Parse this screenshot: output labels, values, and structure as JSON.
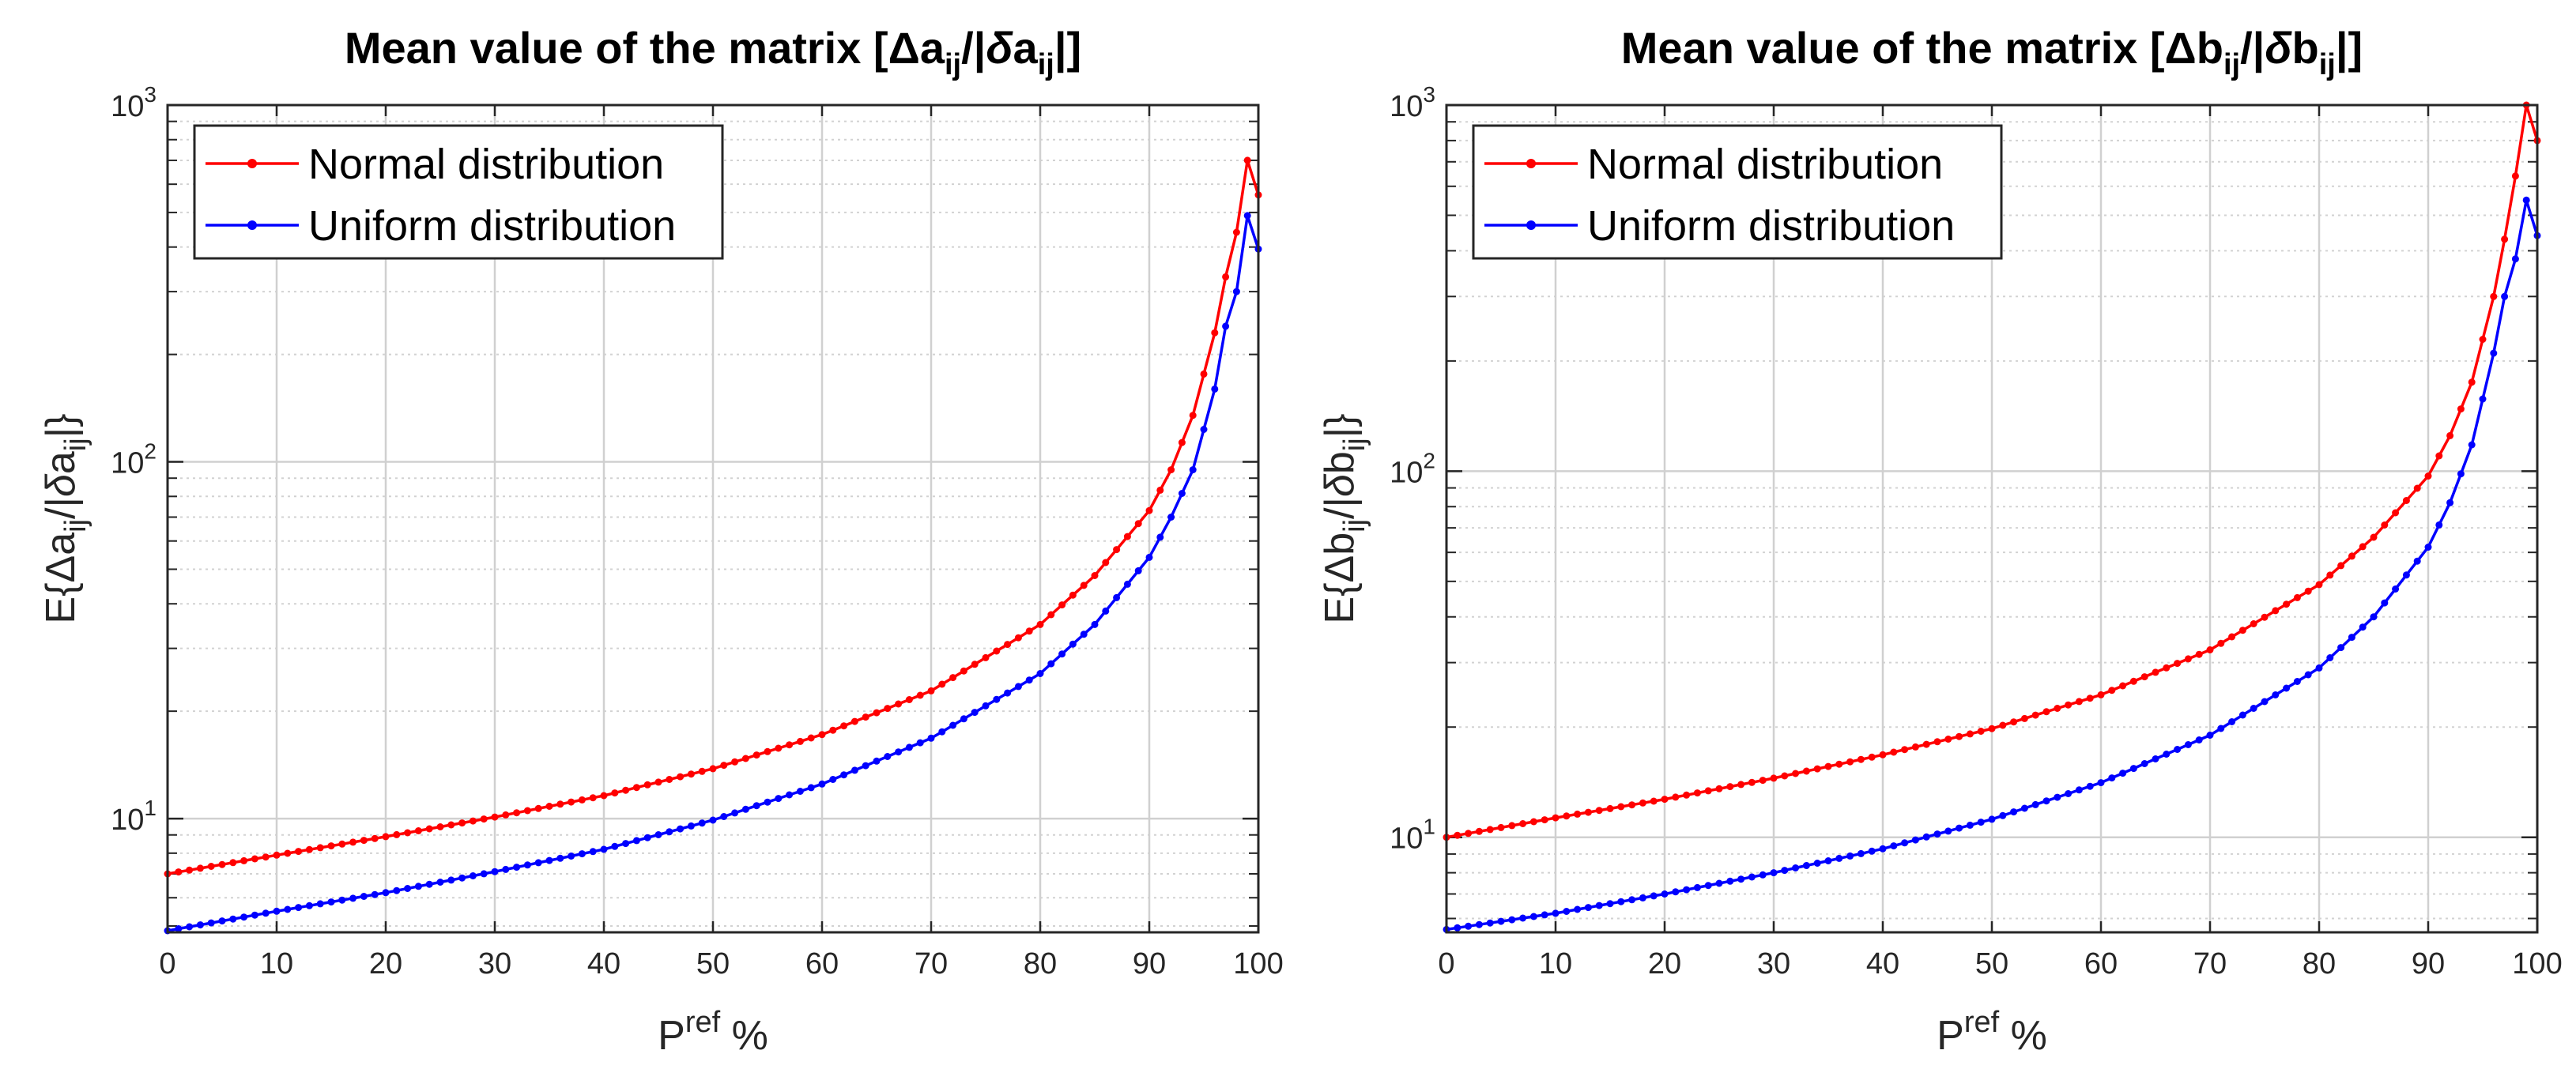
{
  "chart_data": [
    {
      "type": "line",
      "id": "left",
      "title": {
        "prefix": "Mean value of the matrix [",
        "delta": "Δ",
        "var": "a",
        "sub": "ij",
        "mid": "/|",
        "delta2": "δ",
        "var2": "a",
        "sub2": "ij",
        "suffix": "|]"
      },
      "xlabel": {
        "main": "P",
        "sup": "ref",
        "tail": " %"
      },
      "ylabel": {
        "prefix": "E{",
        "delta": "Δ",
        "var": "a",
        "sub": "ij",
        "mid": "/|",
        "delta2": "δ",
        "var2": "a",
        "sub2": "ij",
        "suffix": "|}"
      },
      "xlim": [
        0,
        100
      ],
      "ylim": [
        4.8,
        1000
      ],
      "yscale": "log",
      "xticks": [
        0,
        10,
        20,
        30,
        40,
        50,
        60,
        70,
        80,
        90,
        100
      ],
      "yticks": [
        {
          "value": 10,
          "base": "10",
          "exp": "1"
        },
        {
          "value": 100,
          "base": "10",
          "exp": "2"
        },
        {
          "value": 1000,
          "base": "10",
          "exp": "3"
        }
      ],
      "legend": {
        "location": "top-left",
        "entries": [
          "Normal distribution",
          "Uniform distribution"
        ]
      },
      "series": [
        {
          "name": "Normal distribution",
          "color": "#ff0000",
          "anchors_x": [
            0,
            10,
            20,
            30,
            40,
            50,
            60,
            70,
            80,
            85,
            90,
            92,
            94,
            96,
            97,
            98,
            99,
            100
          ],
          "anchors_y": [
            7.0,
            7.9,
            8.9,
            10.1,
            11.6,
            13.8,
            17.2,
            22.8,
            35,
            48,
            73,
            95,
            135,
            230,
            330,
            440,
            700,
            560
          ]
        },
        {
          "name": "Uniform distribution",
          "color": "#0000ff",
          "anchors_x": [
            0,
            10,
            20,
            30,
            40,
            50,
            60,
            70,
            80,
            85,
            90,
            92,
            94,
            96,
            97,
            98,
            99,
            100
          ],
          "anchors_y": [
            4.85,
            5.5,
            6.2,
            7.1,
            8.2,
            9.9,
            12.5,
            16.8,
            25.5,
            35,
            54,
            70,
            95,
            160,
            240,
            300,
            490,
            395
          ]
        }
      ]
    },
    {
      "type": "line",
      "id": "right",
      "title": {
        "prefix": "Mean value of the matrix [",
        "delta": "Δ",
        "var": "b",
        "sub": "ij",
        "mid": "/|",
        "delta2": "δ",
        "var2": "b",
        "sub2": "ij",
        "suffix": "|]"
      },
      "xlabel": {
        "main": "P",
        "sup": "ref",
        "tail": " %"
      },
      "ylabel": {
        "prefix": "E{",
        "delta": "Δ",
        "var": "b",
        "sub": "ij",
        "mid": "/|",
        "delta2": "δ",
        "var2": "b",
        "sub2": "ij",
        "suffix": "|}"
      },
      "xlim": [
        0,
        100
      ],
      "ylim": [
        5.5,
        1000
      ],
      "yscale": "log",
      "xticks": [
        0,
        10,
        20,
        30,
        40,
        50,
        60,
        70,
        80,
        90,
        100
      ],
      "yticks": [
        {
          "value": 10,
          "base": "10",
          "exp": "1"
        },
        {
          "value": 100,
          "base": "10",
          "exp": "2"
        },
        {
          "value": 1000,
          "base": "10",
          "exp": "3"
        }
      ],
      "legend": {
        "location": "top-left",
        "entries": [
          "Normal distribution",
          "Uniform distribution"
        ]
      },
      "series": [
        {
          "name": "Normal distribution",
          "color": "#ff0000",
          "anchors_x": [
            0,
            10,
            20,
            30,
            40,
            50,
            60,
            70,
            80,
            85,
            90,
            92,
            94,
            96,
            97,
            98,
            99,
            100
          ],
          "anchors_y": [
            10.0,
            11.3,
            12.7,
            14.5,
            16.8,
            19.8,
            24.5,
            32.5,
            49,
            66,
            97,
            125,
            175,
            300,
            430,
            640,
            1000,
            800
          ]
        },
        {
          "name": "Uniform distribution",
          "color": "#0000ff",
          "anchors_x": [
            0,
            10,
            20,
            30,
            40,
            50,
            60,
            70,
            80,
            85,
            90,
            92,
            94,
            96,
            97,
            98,
            99,
            100
          ],
          "anchors_y": [
            5.6,
            6.2,
            7.0,
            8.0,
            9.3,
            11.2,
            14.1,
            19.0,
            29,
            40,
            62,
            82,
            118,
            210,
            300,
            380,
            550,
            440
          ]
        }
      ]
    }
  ]
}
